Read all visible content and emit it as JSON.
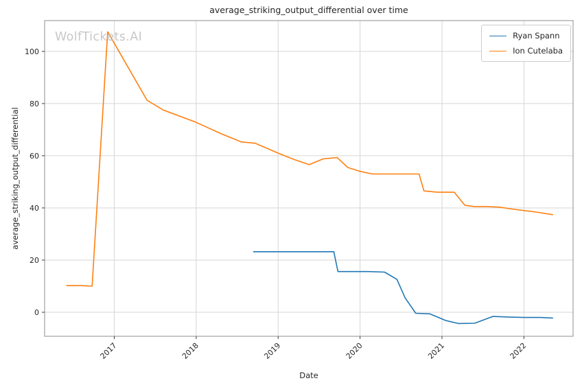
{
  "watermark": "WolfTickets.AI",
  "chart_data": {
    "type": "line",
    "title": "average_striking_output_differential over time",
    "xlabel": "Date",
    "ylabel": "average_striking_output_differential",
    "xlim": [
      2016.15,
      2022.6
    ],
    "ylim": [
      -9.2,
      111.8
    ],
    "xticks": [
      2017,
      2018,
      2019,
      2020,
      2021,
      2022
    ],
    "yticks": [
      0,
      20,
      40,
      60,
      80,
      100
    ],
    "grid": true,
    "legend_position": "upper right",
    "series": [
      {
        "name": "Ryan Spann",
        "color": "#1f77b4",
        "points": [
          [
            2018.7,
            23.2
          ],
          [
            2019.0,
            23.2
          ],
          [
            2019.35,
            23.2
          ],
          [
            2019.68,
            23.2
          ],
          [
            2019.73,
            15.6
          ],
          [
            2019.9,
            15.6
          ],
          [
            2020.1,
            15.6
          ],
          [
            2020.3,
            15.4
          ],
          [
            2020.45,
            12.6
          ],
          [
            2020.55,
            5.5
          ],
          [
            2020.68,
            -0.4
          ],
          [
            2020.85,
            -0.6
          ],
          [
            2021.05,
            -3.2
          ],
          [
            2021.2,
            -4.3
          ],
          [
            2021.4,
            -4.2
          ],
          [
            2021.62,
            -1.6
          ],
          [
            2021.8,
            -1.8
          ],
          [
            2022.0,
            -2.0
          ],
          [
            2022.2,
            -2.0
          ],
          [
            2022.35,
            -2.2
          ]
        ]
      },
      {
        "name": "Ion Cutelaba",
        "color": "#ff7f0e",
        "points": [
          [
            2016.42,
            10.2
          ],
          [
            2016.6,
            10.2
          ],
          [
            2016.73,
            10.0
          ],
          [
            2016.92,
            107.5
          ],
          [
            2017.4,
            81.3
          ],
          [
            2017.6,
            77.5
          ],
          [
            2018.0,
            72.8
          ],
          [
            2018.3,
            68.5
          ],
          [
            2018.55,
            65.3
          ],
          [
            2018.72,
            64.8
          ],
          [
            2019.0,
            61.0
          ],
          [
            2019.2,
            58.5
          ],
          [
            2019.38,
            56.6
          ],
          [
            2019.55,
            58.8
          ],
          [
            2019.72,
            59.3
          ],
          [
            2019.85,
            55.5
          ],
          [
            2020.0,
            54.0
          ],
          [
            2020.15,
            53.0
          ],
          [
            2020.4,
            53.0
          ],
          [
            2020.72,
            53.0
          ],
          [
            2020.78,
            46.5
          ],
          [
            2020.95,
            46.0
          ],
          [
            2021.15,
            46.0
          ],
          [
            2021.28,
            41.0
          ],
          [
            2021.4,
            40.5
          ],
          [
            2021.55,
            40.5
          ],
          [
            2021.7,
            40.3
          ],
          [
            2021.85,
            39.6
          ],
          [
            2022.0,
            39.0
          ],
          [
            2022.15,
            38.4
          ],
          [
            2022.35,
            37.4
          ]
        ]
      }
    ]
  }
}
